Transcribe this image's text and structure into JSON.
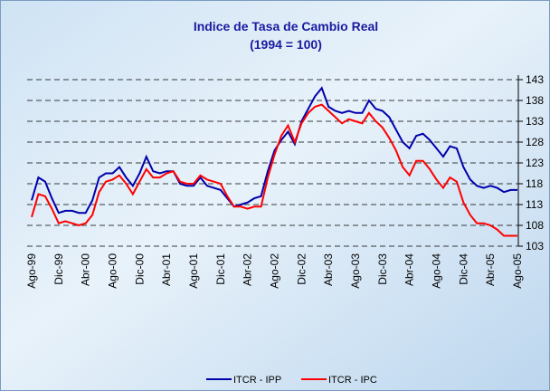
{
  "chart_data": {
    "type": "line",
    "title": "Indice de Tasa de Cambio Real",
    "subtitle": "(1994 = 100)",
    "categories": [
      "Ago-99",
      null,
      null,
      null,
      "Dic-99",
      null,
      null,
      null,
      "Abr-00",
      null,
      null,
      null,
      "Ago-00",
      null,
      null,
      null,
      "Dic-00",
      null,
      null,
      null,
      "Abr-01",
      null,
      null,
      null,
      "Ago-01",
      null,
      null,
      null,
      "Dic-01",
      null,
      null,
      null,
      "Abr-02",
      null,
      null,
      null,
      "Ago-02",
      null,
      null,
      null,
      "Dic-02",
      null,
      null,
      null,
      "Abr-03",
      null,
      null,
      null,
      "Ago-03",
      null,
      null,
      null,
      "Dic-03",
      null,
      null,
      null,
      "Abr-04",
      null,
      null,
      null,
      "Ago-04",
      null,
      null,
      null,
      "Dic-04",
      null,
      null,
      null,
      "Abr-05",
      null,
      null,
      null,
      "Ago-05"
    ],
    "series": [
      {
        "name": "ITCR - IPP",
        "color": "#0000aa",
        "values": [
          114,
          119.5,
          118.5,
          114.5,
          111,
          111.5,
          111.5,
          111,
          111,
          114,
          119.5,
          120.5,
          120.5,
          122,
          119.5,
          117.5,
          120.5,
          124.5,
          121,
          120.5,
          121,
          121,
          118,
          117.5,
          117.5,
          119.5,
          117.5,
          117,
          116.5,
          114.5,
          112.5,
          113,
          113.5,
          114.5,
          115,
          121,
          126,
          128.5,
          130.5,
          127.5,
          133,
          136,
          139,
          141,
          136.5,
          135.5,
          135,
          135.5,
          135,
          135,
          138,
          136,
          135.5,
          134,
          131,
          128,
          126.5,
          129.5,
          130,
          128.5,
          126.5,
          124.5,
          127,
          126.5,
          122,
          119,
          117.5,
          117,
          117.5,
          117,
          116,
          116.5,
          116.5
        ]
      },
      {
        "name": "ITCR - IPC",
        "color": "#ff0000",
        "values": [
          110,
          115.5,
          115,
          112,
          108.5,
          109,
          108.5,
          108,
          108.5,
          110.5,
          116,
          118.5,
          119,
          120,
          118,
          115.5,
          118.5,
          121.5,
          119.5,
          119.5,
          120.5,
          121,
          118.5,
          118,
          118,
          120,
          119,
          118.5,
          118,
          115,
          112.5,
          112.5,
          112,
          112.5,
          112.5,
          119.5,
          125,
          129.5,
          132,
          128,
          132.5,
          135,
          136.5,
          137,
          135.5,
          134,
          132.5,
          133.5,
          133,
          132.5,
          135,
          133,
          131.5,
          129,
          126,
          122,
          120,
          123.5,
          123.5,
          121.5,
          119,
          117,
          119.5,
          118.5,
          113.5,
          110.5,
          108.5,
          108.5,
          108,
          107,
          105.5,
          105.5,
          105.5
        ]
      }
    ],
    "ylim": [
      103,
      143
    ],
    "yticks": [
      103,
      108,
      113,
      118,
      123,
      128,
      133,
      138,
      143
    ],
    "grid": true,
    "legend": "bottom"
  }
}
